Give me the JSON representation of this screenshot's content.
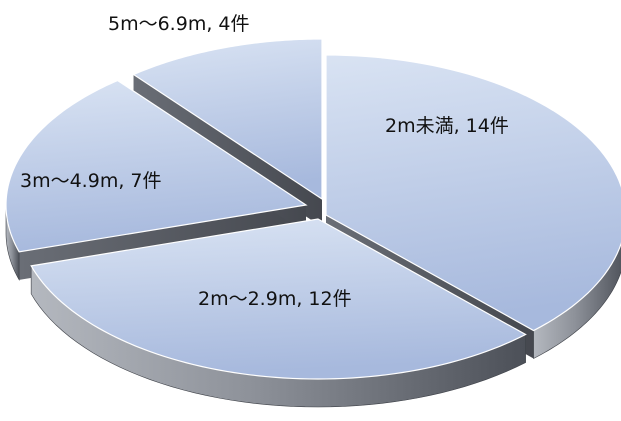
{
  "chart_data": {
    "type": "pie",
    "style": "3d",
    "start_angle_deg": 0,
    "direction": "clockwise",
    "title": "",
    "categories": [
      "2m未満",
      "2m～2.9m",
      "3m～4.9m",
      "5m～6.9m"
    ],
    "values": [
      14,
      12,
      7,
      4
    ],
    "labels": [
      "2m未満, 14件",
      "2m～2.9m, 12件",
      "3m～4.9m, 7件",
      "5m～6.9m, 4件"
    ],
    "colors": {
      "top_light": "#d9e3f3",
      "top_dark": "#a7b9dd",
      "side_light": "#b4b8bf",
      "side_dark": "#4c5058"
    }
  }
}
